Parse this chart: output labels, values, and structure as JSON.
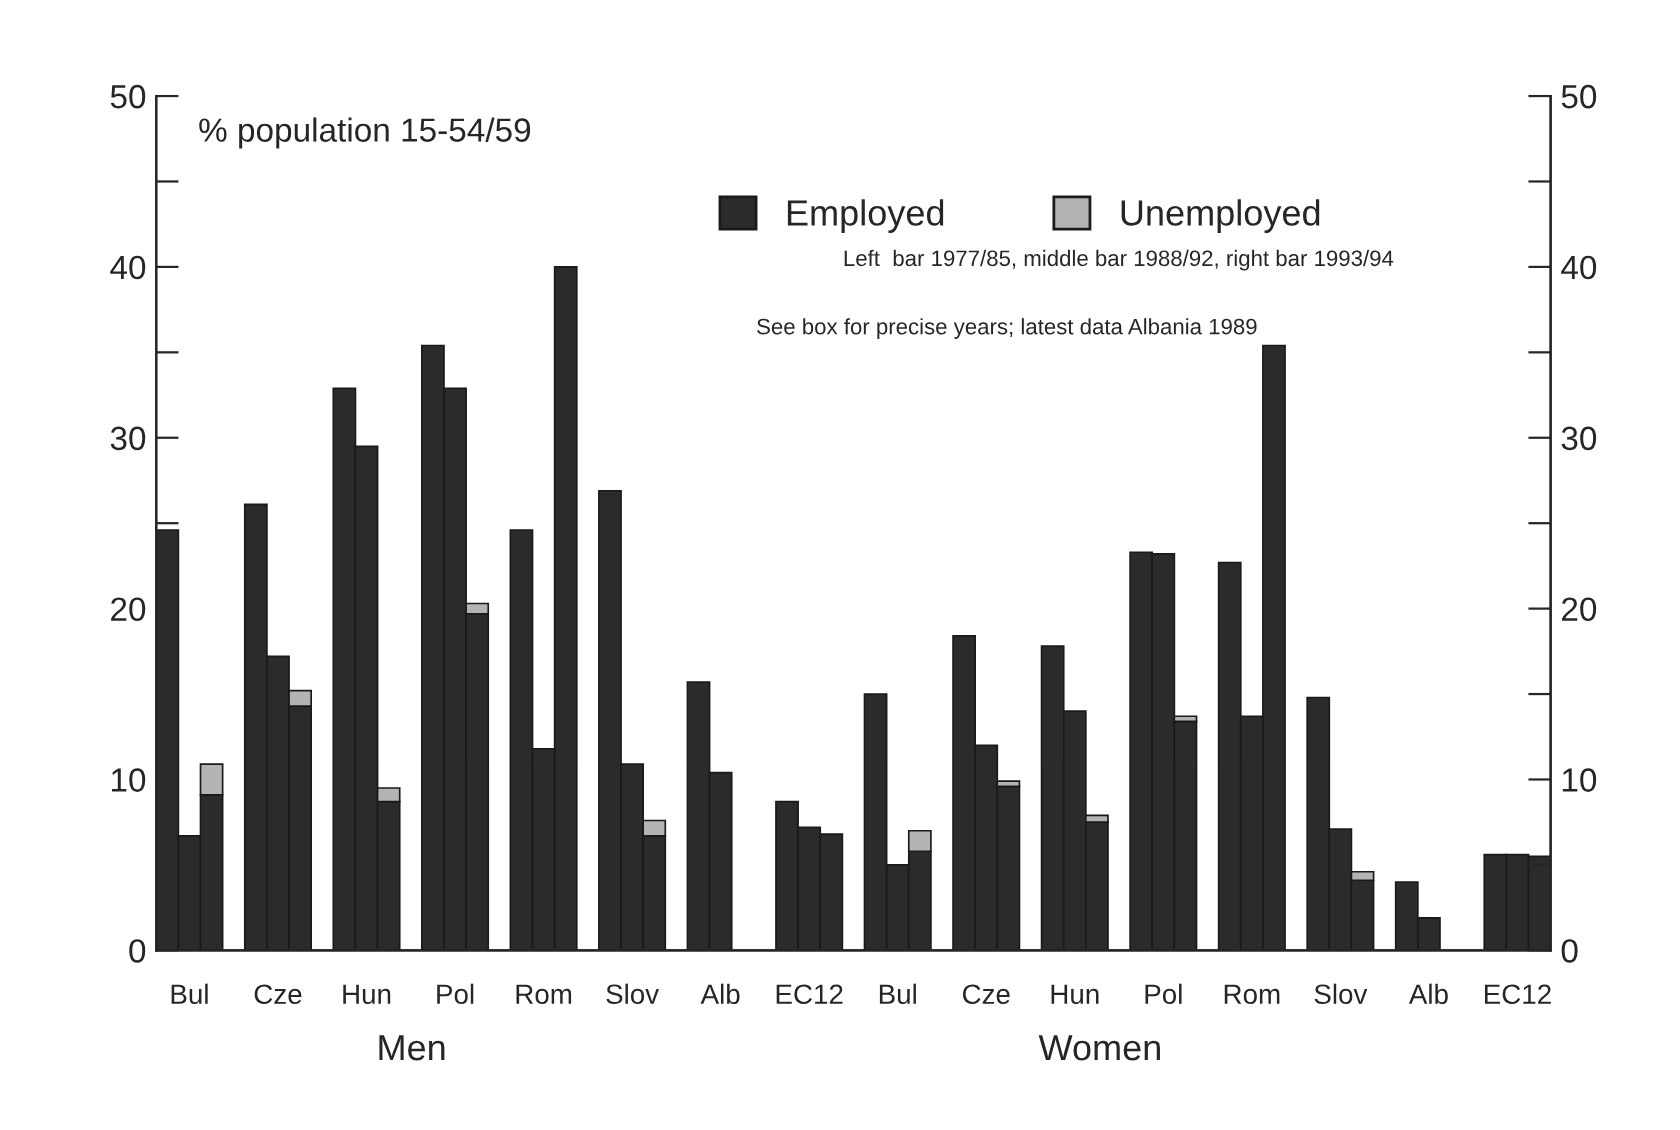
{
  "chart_data": {
    "type": "bar",
    "stacked": true,
    "categories": [
      null,
      "Bul",
      null,
      null,
      null,
      "Cze",
      null,
      null,
      null,
      "Hun",
      null,
      null,
      null,
      "Pol",
      null,
      null,
      null,
      "Rom",
      null,
      null,
      null,
      "Slov",
      null,
      null,
      null,
      "Alb",
      null,
      null,
      null,
      "EC12",
      null,
      null,
      null,
      "Bul",
      null,
      null,
      null,
      "Cze",
      null,
      null,
      null,
      "Hun",
      null,
      null,
      null,
      "Pol",
      null,
      null,
      null,
      "Rom",
      null,
      null,
      null,
      "Slov",
      null,
      null,
      null,
      "Alb",
      null,
      null,
      null,
      "EC12",
      null
    ],
    "series": [
      {
        "name": "Employed",
        "color": "#2b2b2b",
        "values": [
          24.6,
          6.7,
          9.1,
          null,
          26.1,
          17.2,
          14.3,
          null,
          32.9,
          29.5,
          8.7,
          null,
          35.4,
          32.9,
          19.7,
          null,
          24.6,
          11.8,
          40.0,
          null,
          26.9,
          10.9,
          6.7,
          null,
          15.7,
          10.4,
          null,
          null,
          8.7,
          7.2,
          6.8,
          null,
          15.0,
          5.0,
          5.8,
          null,
          18.4,
          12.0,
          9.6,
          null,
          17.8,
          14.0,
          7.5,
          null,
          23.3,
          23.2,
          13.4,
          null,
          22.7,
          13.7,
          35.4,
          null,
          14.8,
          7.1,
          4.1,
          null,
          4.0,
          1.9,
          null,
          null,
          5.6,
          5.6,
          5.5
        ]
      },
      {
        "name": "Unemployed",
        "color": "#b4b4b4",
        "values": [
          null,
          null,
          1.8,
          null,
          null,
          null,
          0.9,
          null,
          null,
          null,
          0.8,
          null,
          null,
          null,
          0.6,
          null,
          null,
          null,
          null,
          null,
          null,
          null,
          0.9,
          null,
          null,
          null,
          null,
          null,
          null,
          null,
          null,
          null,
          null,
          null,
          1.2,
          null,
          null,
          null,
          0.3,
          null,
          null,
          null,
          0.4,
          null,
          null,
          null,
          0.3,
          null,
          null,
          null,
          null,
          null,
          null,
          null,
          0.5,
          null,
          null,
          null,
          null,
          null,
          null,
          null,
          null
        ]
      }
    ],
    "ylim": [
      0,
      50
    ],
    "yticks": [
      0,
      {
        "value": 5,
        "label": null
      },
      10,
      {
        "value": 15,
        "label": null
      },
      20,
      {
        "value": 25,
        "label": null
      },
      30,
      {
        "value": 35,
        "label": null
      },
      40,
      {
        "value": 45,
        "label": null
      },
      50
    ],
    "y2lim": [
      0,
      50
    ],
    "y2ticks": [
      0,
      {
        "value": 5,
        "label": null
      },
      10,
      {
        "value": 15,
        "label": null
      },
      20,
      {
        "value": 25,
        "label": null
      },
      30,
      {
        "value": 35,
        "label": null
      },
      40,
      {
        "value": 45,
        "label": null
      },
      50
    ],
    "legend": "top",
    "grid": false,
    "annotations": [
      "% population 15-54/59",
      "Left  bar 1977/85, middle bar 1988/92, right bar 1993/94",
      "See box for precise years; latest data Albania 1989",
      "Men",
      "Women"
    ]
  }
}
